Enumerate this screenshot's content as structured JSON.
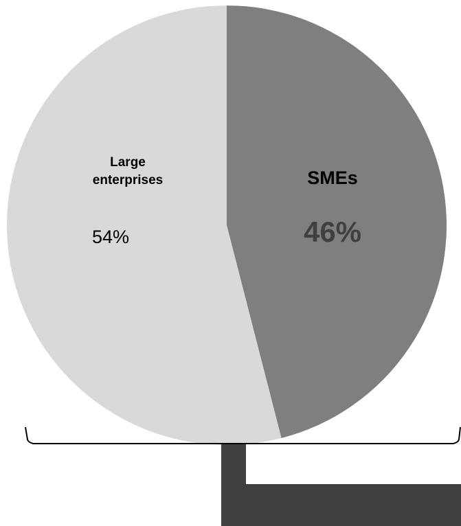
{
  "chart_data": {
    "type": "pie",
    "slices": [
      {
        "label_lines": [
          "SMEs"
        ],
        "value": 46,
        "value_label": "46%",
        "color": "#7f7f7f",
        "value_color": "#404040"
      },
      {
        "label_lines": [
          "Large",
          "enterprises"
        ],
        "value": 54,
        "value_label": "54%",
        "color": "#d9d9d9",
        "value_color": "#000000"
      }
    ],
    "start_angle": "12 o'clock",
    "direction": "clockwise",
    "legend": "none"
  },
  "colors": {
    "bracket": "#000000",
    "connector": "#404040",
    "background": "#ffffff"
  }
}
